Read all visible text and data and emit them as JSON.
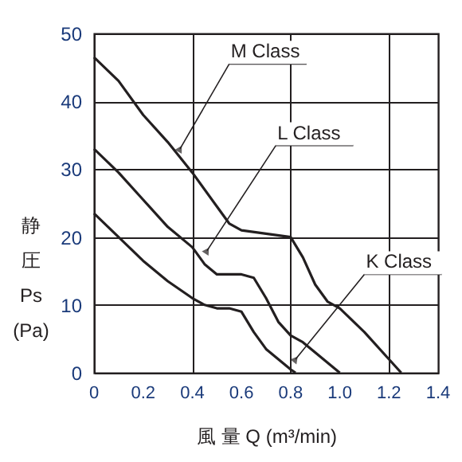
{
  "chart_data": {
    "type": "line",
    "xlabel": "風 量 Q (m³/min)",
    "ylabel": "静圧 Ps (Pa)",
    "xlim": [
      0,
      1.4
    ],
    "xticks": [
      0,
      0.2,
      0.4,
      0.6,
      0.8,
      {
        "value": 1.0,
        "label": "1.0"
      },
      1.2,
      1.4
    ],
    "ylim": [
      0,
      50
    ],
    "yticks": [
      0,
      10,
      20,
      30,
      40,
      50
    ],
    "grid": true,
    "line_style": "solid",
    "marker": "none",
    "series": [
      {
        "color": "#231f20",
        "x": [
          0,
          0.1,
          0.2,
          0.3,
          0.4,
          0.5,
          0.55,
          0.6,
          0.7,
          0.8,
          0.85,
          0.9,
          0.95,
          1.0,
          1.1,
          1.2,
          1.25
        ],
        "values": [
          46.5,
          43,
          38,
          34,
          29.5,
          24.5,
          22,
          21,
          20.5,
          20,
          17,
          13,
          10.5,
          9.5,
          6,
          2,
          0
        ]
      },
      {
        "color": "#231f20",
        "x": [
          0,
          0.1,
          0.2,
          0.3,
          0.4,
          0.45,
          0.5,
          0.6,
          0.65,
          0.7,
          0.75,
          0.8,
          0.85,
          0.9,
          1.0
        ],
        "values": [
          33,
          29.5,
          25.5,
          21.5,
          18.5,
          16,
          14.5,
          14.5,
          14,
          11,
          7.5,
          5.5,
          4.5,
          3,
          0
        ]
      },
      {
        "color": "#231f20",
        "x": [
          0,
          0.1,
          0.2,
          0.3,
          0.4,
          0.45,
          0.5,
          0.55,
          0.6,
          0.65,
          0.7,
          0.75,
          0.8,
          0.82
        ],
        "values": [
          23.5,
          20,
          16.5,
          13.5,
          11,
          10,
          9.5,
          9.5,
          9,
          6,
          3.5,
          2,
          0.5,
          0
        ]
      }
    ],
    "annotations": [
      {
        "text": "M Class",
        "x": 0.35,
        "y": 33
      },
      {
        "text": "L Class",
        "x": 0.46,
        "y": 18
      },
      {
        "text": "K Class",
        "x": 0.82,
        "y": 2
      }
    ]
  }
}
